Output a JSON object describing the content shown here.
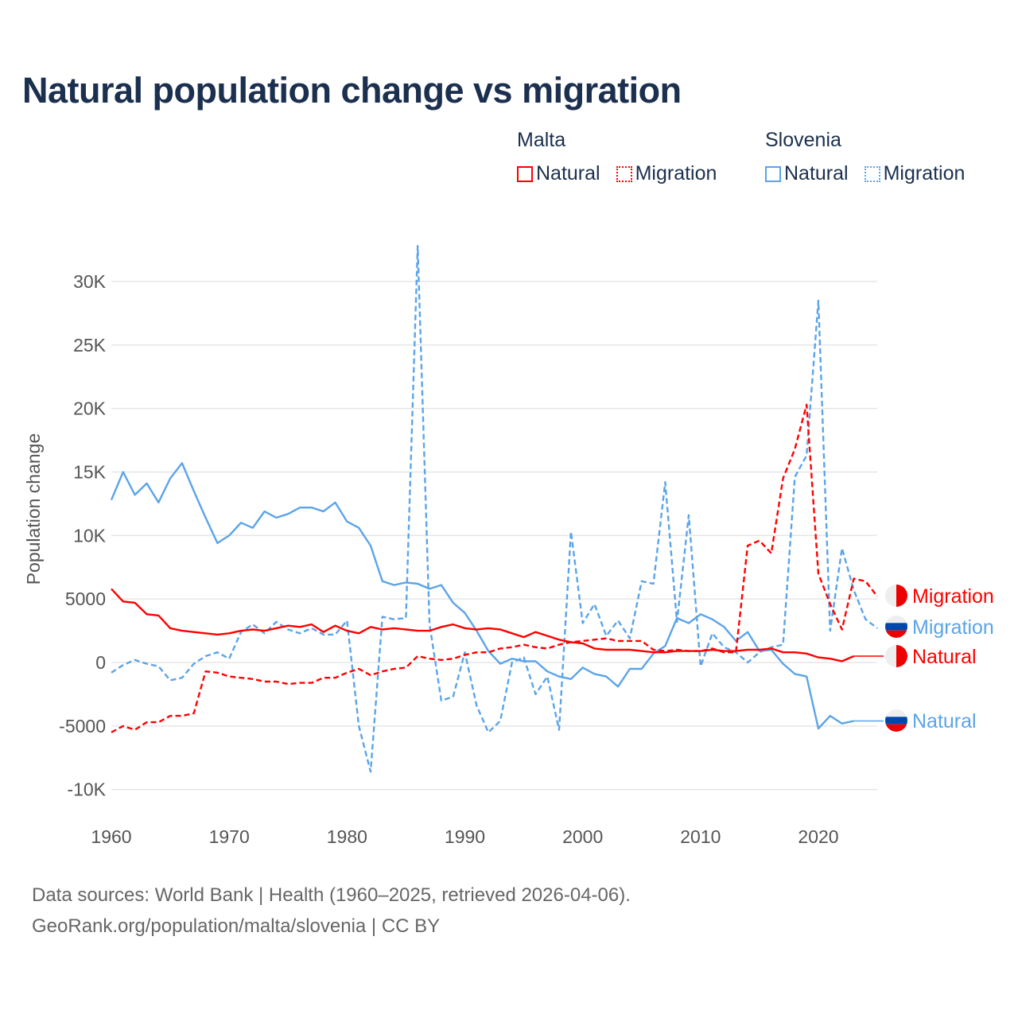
{
  "title": "Natural population change vs migration",
  "legend": {
    "groups": [
      {
        "name": "Malta",
        "color": "#ff0000",
        "items": [
          "Natural",
          "Migration"
        ]
      },
      {
        "name": "Slovenia",
        "color": "#5ba4e8",
        "items": [
          "Natural",
          "Migration"
        ]
      }
    ]
  },
  "footer": {
    "line1": "Data sources: World Bank | Health (1960–2025, retrieved 2026-04-06).",
    "line2": "GeoRank.org/population/malta/slovenia | CC BY"
  },
  "chart_data": {
    "type": "line",
    "title": "Natural population change vs migration",
    "xlabel": "",
    "ylabel": "Population change",
    "xlim": [
      1960,
      2025
    ],
    "ylim": [
      -10000,
      30000
    ],
    "x_ticks": [
      1960,
      1970,
      1980,
      1990,
      2000,
      2010,
      2020
    ],
    "x_tick_labels": [
      "1960",
      "1970",
      "1980",
      "1990",
      "2000",
      "2010",
      "2020"
    ],
    "y_ticks": [
      30000,
      25000,
      20000,
      15000,
      10000,
      5000,
      0,
      -5000,
      -10000
    ],
    "y_tick_labels": [
      "30K",
      "25K",
      "20K",
      "15K",
      "10K",
      "5000",
      "0",
      "-5000",
      "-10K"
    ],
    "grid": true,
    "legend_placement": "top-right",
    "x_start": 1960,
    "series": [
      {
        "name": "Slovenia Natural",
        "country": "Slovenia",
        "label": "Natural",
        "color": "#5ba4e8",
        "dashed": false,
        "values": [
          12800,
          15000,
          13200,
          14100,
          12600,
          14500,
          15700,
          13500,
          11400,
          9400,
          10000,
          11000,
          10600,
          11900,
          11400,
          11700,
          12200,
          12200,
          11900,
          12600,
          11100,
          10600,
          9200,
          6400,
          6100,
          6300,
          6200,
          5800,
          6100,
          4700,
          3900,
          2500,
          900,
          -100,
          300,
          100,
          100,
          -700,
          -1100,
          -1300,
          -400,
          -900,
          -1100,
          -1900,
          -500,
          -500,
          700,
          1300,
          3500,
          3100,
          3800,
          3400,
          2800,
          1700,
          2400,
          900,
          1000,
          -100,
          -900,
          -1100,
          -5200,
          -4200,
          -4800,
          -4600,
          -4600,
          -4600
        ]
      },
      {
        "name": "Slovenia Migration",
        "country": "Slovenia",
        "label": "Migration",
        "color": "#5ba4e8",
        "dashed": true,
        "values": [
          -800,
          -200,
          200,
          -100,
          -300,
          -1400,
          -1200,
          -100,
          500,
          800,
          300,
          2400,
          3000,
          2300,
          3200,
          2600,
          2300,
          2700,
          2200,
          2200,
          3300,
          -5000,
          -8600,
          3600,
          3400,
          3500,
          32800,
          3000,
          -3000,
          -2700,
          800,
          -3400,
          -5500,
          -4600,
          0,
          400,
          -2500,
          -1100,
          -5300,
          10300,
          3100,
          4600,
          2100,
          3300,
          1900,
          6400,
          6200,
          14200,
          3200,
          11600,
          -300,
          2300,
          1200,
          800,
          0,
          800,
          1200,
          1400,
          14600,
          16300,
          28500,
          2500,
          9000,
          5700,
          3400,
          2700
        ]
      },
      {
        "name": "Malta Natural",
        "country": "Malta",
        "label": "Natural",
        "color": "#ff0000",
        "dashed": false,
        "values": [
          5800,
          4800,
          4700,
          3800,
          3700,
          2700,
          2500,
          2400,
          2300,
          2200,
          2300,
          2500,
          2600,
          2500,
          2700,
          2900,
          2800,
          3000,
          2400,
          2900,
          2500,
          2300,
          2800,
          2600,
          2700,
          2600,
          2500,
          2500,
          2800,
          3000,
          2700,
          2600,
          2700,
          2600,
          2300,
          2000,
          2400,
          2100,
          1800,
          1600,
          1500,
          1100,
          1000,
          1000,
          1000,
          900,
          800,
          800,
          900,
          900,
          900,
          1000,
          900,
          900,
          1000,
          1000,
          1100,
          800,
          800,
          700,
          400,
          300,
          100,
          500,
          500,
          500
        ]
      },
      {
        "name": "Malta Migration",
        "country": "Malta",
        "label": "Migration",
        "color": "#ff0000",
        "dashed": true,
        "values": [
          -5500,
          -5000,
          -5300,
          -4700,
          -4700,
          -4200,
          -4200,
          -4000,
          -700,
          -800,
          -1100,
          -1200,
          -1300,
          -1500,
          -1500,
          -1700,
          -1600,
          -1600,
          -1200,
          -1200,
          -800,
          -500,
          -1000,
          -700,
          -500,
          -400,
          500,
          300,
          200,
          300,
          600,
          800,
          800,
          1100,
          1200,
          1400,
          1200,
          1100,
          1400,
          1600,
          1700,
          1800,
          1900,
          1700,
          1700,
          1700,
          1000,
          900,
          1000,
          900,
          900,
          1100,
          800,
          800,
          9200,
          9600,
          8600,
          14500,
          16800,
          20300,
          7000,
          4600,
          2600,
          6600,
          6400,
          5200
        ]
      }
    ],
    "end_labels": [
      {
        "text": "Migration",
        "country": "Malta"
      },
      {
        "text": "Migration",
        "country": "Slovenia"
      },
      {
        "text": "Natural",
        "country": "Malta"
      },
      {
        "text": "Natural",
        "country": "Slovenia"
      }
    ]
  }
}
